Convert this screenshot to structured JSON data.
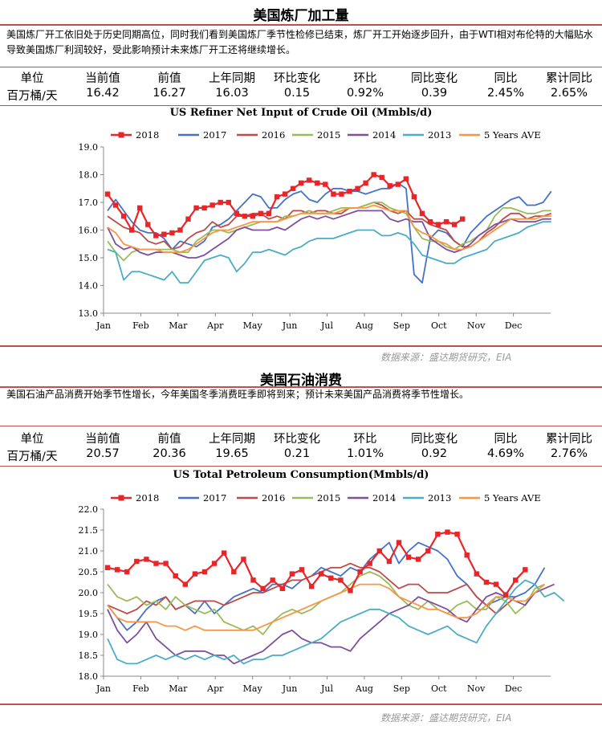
{
  "sections": [
    {
      "title": "美国炼厂加工量",
      "desc": "美国炼厂开工依旧处于历史同期高位，同时我们看到美国炼厂季节性检修已结束，炼厂开工开始逐步回升，由于WTI相对布伦特的大幅贴水导致美国炼厂利润较好，受此影响预计未来炼厂开工还将继续增长。",
      "table": {
        "headers": [
          "单位",
          "当前值",
          "前值",
          "上年同期",
          "环比变化",
          "环比",
          "同比变化",
          "同比",
          "累计同比"
        ],
        "values": [
          "百万桶/天",
          "16.42",
          "16.27",
          "16.03",
          "0.15",
          "0.92%",
          "0.39",
          "2.45%",
          "2.65%"
        ]
      },
      "source": "数据来源：盛达期货研究，EIA"
    },
    {
      "title": "美国石油消费",
      "desc": "美国石油产品消费开始季节性增长，今年美国冬季消费旺季即将到来；预计未来美国产品消费将季节性增长。",
      "table": {
        "headers": [
          "单位",
          "当前值",
          "前值",
          "上年同期",
          "环比变化",
          "环比",
          "同比变化",
          "同比",
          "累计同比"
        ],
        "values": [
          "百万桶/天",
          "20.57",
          "20.36",
          "19.65",
          "0.21",
          "1.01%",
          "0.92",
          "4.69%",
          "2.76%"
        ]
      },
      "source": "数据来源：盛达期货研究，EIA"
    }
  ],
  "chart_data": [
    {
      "type": "line",
      "title": "US Refiner Net Input of Crude Oil (Mmbls/d)",
      "ylim": [
        13.0,
        19.0
      ],
      "yticks": [
        "19.0",
        "18.0",
        "17.0",
        "16.0",
        "15.0",
        "14.0",
        "13.0"
      ],
      "x_labels": [
        "Jan",
        "Feb",
        "Mar",
        "Apr",
        "May",
        "Jun",
        "Jul",
        "Aug",
        "Sep",
        "Oct",
        "Nov",
        "Dec"
      ],
      "legend_position": "top",
      "series": [
        {
          "name": "2018",
          "color": "#e8262a",
          "markers": true,
          "values": [
            17.3,
            16.9,
            16.5,
            16.0,
            16.8,
            16.2,
            15.8,
            15.85,
            15.9,
            16.0,
            16.4,
            16.8,
            16.8,
            16.9,
            17.0,
            17.0,
            16.6,
            16.5,
            16.5,
            16.6,
            16.6,
            17.2,
            17.3,
            17.5,
            17.7,
            17.8,
            17.7,
            17.65,
            17.3,
            17.3,
            17.4,
            17.5,
            17.7,
            18.0,
            17.9,
            17.6,
            17.65,
            17.85,
            17.2,
            16.6,
            16.3,
            16.2,
            16.3,
            16.2,
            16.4
          ]
        },
        {
          "name": "2017",
          "color": "#4472c4",
          "values": [
            16.7,
            17.1,
            16.7,
            16.3,
            16.0,
            15.9,
            15.9,
            15.7,
            15.3,
            15.6,
            15.5,
            15.4,
            15.6,
            16.1,
            16.2,
            16.4,
            16.7,
            17.0,
            17.3,
            17.2,
            16.8,
            16.8,
            17.1,
            17.3,
            17.4,
            17.1,
            17.0,
            17.3,
            17.5,
            17.5,
            17.4,
            17.4,
            17.3,
            17.4,
            17.5,
            17.5,
            17.7,
            17.5,
            14.4,
            14.1,
            15.7,
            16.0,
            15.9,
            15.6,
            15.4,
            15.9,
            16.2,
            16.5,
            16.7,
            16.9,
            17.1,
            17.2,
            16.9,
            16.9,
            17.0,
            17.4
          ]
        },
        {
          "name": "2016",
          "color": "#be4b48",
          "values": [
            16.5,
            16.3,
            16.1,
            16.0,
            15.9,
            15.6,
            15.5,
            15.6,
            15.3,
            15.4,
            15.7,
            15.9,
            16.0,
            16.3,
            16.1,
            16.2,
            16.5,
            16.5,
            16.6,
            16.6,
            16.4,
            16.5,
            16.4,
            16.7,
            16.7,
            16.6,
            16.7,
            16.7,
            16.6,
            16.6,
            16.8,
            16.8,
            16.9,
            17.0,
            16.9,
            16.7,
            16.6,
            16.7,
            16.4,
            16.4,
            16.2,
            16.1,
            16.0,
            15.6,
            15.4,
            15.4,
            15.6,
            15.9,
            16.1,
            16.4,
            16.6,
            16.6,
            16.4,
            16.5,
            16.5,
            16.6
          ]
        },
        {
          "name": "2015",
          "color": "#9bbb59",
          "values": [
            15.6,
            15.2,
            14.9,
            15.2,
            15.3,
            15.3,
            15.3,
            15.3,
            15.3,
            15.2,
            15.2,
            15.6,
            15.8,
            16.0,
            16.0,
            15.9,
            16.0,
            16.1,
            16.2,
            16.3,
            16.3,
            16.3,
            16.5,
            16.5,
            16.6,
            16.7,
            16.6,
            16.6,
            16.7,
            16.8,
            16.8,
            16.8,
            16.9,
            17.0,
            17.0,
            16.8,
            16.7,
            16.6,
            16.1,
            15.7,
            15.6,
            15.6,
            15.4,
            15.3,
            15.5,
            15.6,
            15.8,
            16.0,
            16.5,
            16.8,
            16.8,
            16.7,
            16.6,
            16.6,
            16.7,
            16.7
          ]
        },
        {
          "name": "2014",
          "color": "#7f4f9b",
          "values": [
            16.1,
            15.5,
            15.3,
            15.4,
            15.2,
            15.1,
            15.2,
            15.2,
            15.2,
            15.1,
            15.0,
            15.0,
            15.1,
            15.3,
            15.5,
            15.7,
            16.0,
            16.1,
            16.0,
            16.0,
            16.0,
            16.1,
            16.0,
            16.2,
            16.4,
            16.5,
            16.4,
            16.5,
            16.4,
            16.5,
            16.6,
            16.7,
            16.7,
            16.7,
            16.7,
            16.4,
            16.3,
            16.4,
            16.3,
            16.3,
            15.7,
            15.5,
            15.3,
            15.2,
            15.3,
            15.5,
            15.8,
            16.0,
            16.2,
            16.3,
            16.4,
            16.3,
            16.3,
            16.3,
            16.4,
            16.4
          ]
        },
        {
          "name": "2013",
          "color": "#4bacc6",
          "values": [
            15.3,
            15.2,
            14.2,
            14.5,
            14.5,
            14.4,
            14.3,
            14.2,
            14.5,
            14.1,
            14.1,
            14.5,
            14.9,
            15.0,
            15.1,
            15.0,
            14.5,
            14.8,
            15.2,
            15.2,
            15.3,
            15.2,
            15.1,
            15.3,
            15.4,
            15.6,
            15.7,
            15.7,
            15.7,
            15.8,
            15.9,
            16.0,
            16.0,
            16.0,
            15.8,
            15.8,
            15.9,
            15.8,
            15.5,
            15.1,
            15.0,
            14.9,
            14.8,
            14.8,
            15.0,
            15.1,
            15.2,
            15.3,
            15.6,
            15.7,
            15.8,
            15.9,
            16.1,
            16.2,
            16.3,
            16.3
          ]
        },
        {
          "name": "5 Years AVE",
          "color": "#f79646",
          "values": [
            16.1,
            15.9,
            15.5,
            15.4,
            15.3,
            15.3,
            15.3,
            15.2,
            15.2,
            15.2,
            15.3,
            15.5,
            15.7,
            15.9,
            16.0,
            16.0,
            16.1,
            16.2,
            16.3,
            16.3,
            16.3,
            16.3,
            16.4,
            16.5,
            16.6,
            16.6,
            16.6,
            16.6,
            16.6,
            16.7,
            16.8,
            16.8,
            16.8,
            16.9,
            16.8,
            16.7,
            16.7,
            16.7,
            16.1,
            15.9,
            15.8,
            15.6,
            15.5,
            15.3,
            15.3,
            15.4,
            15.6,
            15.8,
            16.0,
            16.2,
            16.4,
            16.4,
            16.4,
            16.4,
            16.5,
            16.5
          ]
        }
      ]
    },
    {
      "type": "line",
      "title": "US Total Petroleum Consumption(Mmbls/d)",
      "ylim": [
        18.0,
        22.0
      ],
      "yticks": [
        "22.0",
        "21.5",
        "21.0",
        "20.5",
        "20.0",
        "19.5",
        "19.0",
        "18.5",
        "18.0"
      ],
      "x_labels": [
        "Jan",
        "Feb",
        "Mar",
        "Apr",
        "May",
        "Jun",
        "Jul",
        "Aug",
        "Sep",
        "Oct",
        "Nov",
        "Dec"
      ],
      "legend_position": "top",
      "series": [
        {
          "name": "2018",
          "color": "#e8262a",
          "markers": true,
          "values": [
            20.6,
            20.55,
            20.5,
            20.75,
            20.8,
            20.7,
            20.7,
            20.4,
            20.2,
            20.45,
            20.5,
            20.7,
            20.95,
            20.5,
            20.8,
            20.3,
            20.1,
            20.3,
            20.1,
            20.45,
            20.55,
            20.15,
            20.45,
            20.35,
            20.3,
            20.05,
            20.5,
            20.7,
            21.0,
            20.75,
            21.2,
            20.85,
            20.8,
            21.0,
            21.4,
            21.45,
            21.4,
            20.9,
            20.45,
            20.25,
            20.2,
            19.95,
            20.3,
            20.55
          ]
        },
        {
          "name": "2017",
          "color": "#4472c4",
          "values": [
            19.7,
            19.4,
            19.1,
            19.3,
            19.6,
            19.8,
            19.9,
            19.6,
            19.7,
            19.5,
            19.8,
            19.5,
            19.7,
            19.9,
            20.0,
            20.1,
            20.0,
            20.2,
            20.2,
            20.1,
            20.3,
            20.4,
            20.6,
            20.5,
            20.4,
            20.6,
            20.5,
            20.8,
            21.0,
            21.2,
            20.7,
            21.0,
            21.2,
            21.1,
            21.0,
            20.8,
            20.4,
            20.2,
            19.9,
            19.7,
            19.8,
            19.9,
            19.9,
            20.0,
            20.2,
            20.6
          ]
        },
        {
          "name": "2016",
          "color": "#be4b48",
          "values": [
            19.7,
            19.6,
            19.5,
            19.6,
            19.8,
            19.7,
            19.9,
            19.6,
            19.7,
            19.8,
            19.8,
            19.8,
            19.7,
            19.8,
            19.9,
            20.0,
            20.0,
            20.1,
            20.2,
            20.3,
            20.3,
            20.4,
            20.5,
            20.6,
            20.6,
            20.7,
            20.6,
            20.6,
            20.5,
            20.3,
            20.1,
            20.2,
            20.2,
            20.0,
            20.0,
            20.0,
            20.1,
            20.2,
            19.9,
            19.7,
            19.5,
            19.7,
            19.9
          ]
        },
        {
          "name": "2015",
          "color": "#9bbb59",
          "values": [
            20.2,
            19.9,
            19.8,
            19.9,
            19.7,
            19.8,
            19.6,
            19.9,
            19.7,
            19.6,
            19.5,
            19.6,
            19.3,
            19.2,
            19.1,
            19.2,
            19.0,
            19.3,
            19.5,
            19.6,
            19.5,
            19.6,
            19.8,
            19.9,
            20.0,
            20.2,
            20.4,
            20.5,
            20.4,
            20.2,
            19.9,
            19.7,
            19.6,
            19.8,
            19.6,
            19.5,
            19.7,
            19.8,
            19.6,
            19.6,
            19.9,
            19.8,
            19.5,
            19.7,
            20.1,
            20.2
          ]
        },
        {
          "name": "2014",
          "color": "#7f4f9b",
          "values": [
            19.6,
            19.1,
            18.8,
            19.0,
            19.3,
            18.9,
            18.7,
            18.5,
            18.6,
            18.6,
            18.6,
            18.5,
            18.5,
            18.3,
            18.4,
            18.5,
            18.6,
            18.8,
            19.0,
            19.1,
            18.9,
            18.8,
            18.8,
            18.7,
            18.7,
            18.6,
            18.9,
            19.1,
            19.3,
            19.5,
            19.6,
            19.7,
            19.9,
            19.8,
            19.7,
            19.6,
            19.4,
            19.3,
            19.6,
            19.9,
            20.0,
            19.9,
            19.8,
            19.7,
            20.0,
            20.1,
            20.2
          ]
        },
        {
          "name": "2013",
          "color": "#4bacc6",
          "values": [
            18.9,
            18.4,
            18.3,
            18.3,
            18.4,
            18.5,
            18.4,
            18.5,
            18.4,
            18.5,
            18.4,
            18.5,
            18.4,
            18.5,
            18.3,
            18.4,
            18.4,
            18.5,
            18.5,
            18.6,
            18.7,
            18.8,
            18.9,
            19.1,
            19.3,
            19.4,
            19.5,
            19.6,
            19.6,
            19.5,
            19.4,
            19.2,
            19.1,
            19.0,
            19.1,
            19.2,
            19.0,
            18.9,
            18.8,
            19.2,
            19.5,
            19.8,
            20.1,
            20.3,
            20.2,
            19.9,
            20.0,
            19.8
          ]
        },
        {
          "name": "5 Years AVE",
          "color": "#f79646",
          "values": [
            19.7,
            19.4,
            19.3,
            19.3,
            19.3,
            19.3,
            19.2,
            19.2,
            19.1,
            19.2,
            19.1,
            19.1,
            19.1,
            19.1,
            19.1,
            19.1,
            19.2,
            19.3,
            19.4,
            19.5,
            19.6,
            19.7,
            19.8,
            19.9,
            20.0,
            20.1,
            20.2,
            20.2,
            20.2,
            20.1,
            19.9,
            19.8,
            19.7,
            19.6,
            19.6,
            19.5,
            19.4,
            19.4,
            19.5,
            19.7,
            19.9,
            19.9,
            19.8,
            19.8,
            20.0,
            20.2
          ]
        }
      ]
    }
  ]
}
